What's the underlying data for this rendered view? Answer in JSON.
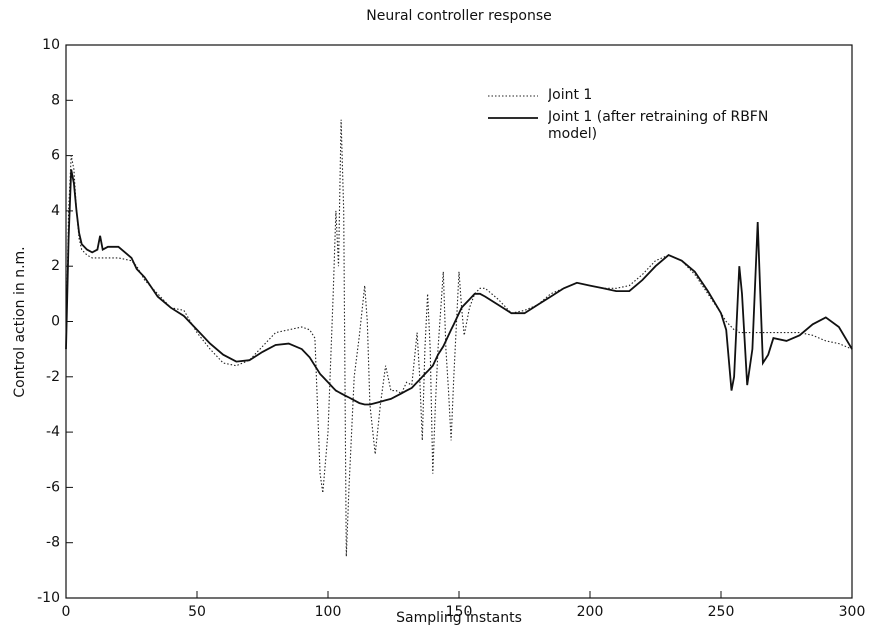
{
  "chart_data": {
    "type": "line",
    "title": "Neural controller response",
    "x_label": "Sampling instants",
    "y_label": "Control action in n.m.",
    "x": [
      0,
      1,
      2,
      3,
      4,
      5,
      6,
      8,
      10,
      12,
      13,
      14,
      16,
      18,
      20,
      25,
      27,
      30,
      35,
      40,
      45,
      50,
      55,
      60,
      65,
      70,
      75,
      80,
      85,
      90,
      93,
      95,
      97,
      98,
      100,
      102,
      103,
      104,
      105,
      106,
      107,
      108,
      110,
      112,
      114,
      115,
      116,
      118,
      120,
      122,
      124,
      126,
      128,
      130,
      132,
      134,
      135,
      136,
      137,
      138,
      139,
      140,
      141,
      142,
      144,
      145,
      146,
      147,
      148,
      150,
      151,
      152,
      154,
      156,
      158,
      160,
      165,
      170,
      175,
      180,
      185,
      190,
      195,
      200,
      205,
      210,
      215,
      220,
      225,
      230,
      235,
      240,
      245,
      250,
      252,
      254,
      255,
      256,
      257,
      258,
      260,
      262,
      264,
      265,
      266,
      268,
      270,
      275,
      280,
      285,
      290,
      295,
      300
    ],
    "series": [
      {
        "name": "Joint 1",
        "color": "#222",
        "dash": "dotted",
        "values": [
          -1,
          4,
          6,
          5.5,
          4,
          3,
          2.6,
          2.4,
          2.3,
          2.3,
          2.3,
          2.3,
          2.3,
          2.3,
          2.3,
          2.2,
          2.0,
          1.5,
          1.0,
          0.5,
          0.4,
          -0.4,
          -1.0,
          -1.5,
          -1.6,
          -1.4,
          -0.9,
          -0.4,
          -0.3,
          -0.2,
          -0.3,
          -0.6,
          -5.5,
          -6.2,
          -4,
          1,
          4,
          2,
          7.3,
          4,
          -8.5,
          -6,
          -2,
          -0.5,
          1.3,
          0,
          -3,
          -4.8,
          -3,
          -1.6,
          -2.5,
          -2.5,
          -2.6,
          -2.2,
          -2.3,
          -0.4,
          -2,
          -4.3,
          -1,
          1,
          -1,
          -5.5,
          -3,
          -1,
          1.8,
          -1,
          -2.5,
          -4.3,
          -2,
          1.8,
          0.5,
          -0.5,
          0.5,
          1.0,
          1.2,
          1.2,
          0.8,
          0.3,
          0.4,
          0.6,
          1.0,
          1.2,
          1.4,
          1.3,
          1.2,
          1.2,
          1.3,
          1.7,
          2.2,
          2.4,
          2.2,
          1.7,
          1.0,
          0.3,
          0,
          -0.2,
          -0.3,
          -0.3,
          -0.4,
          -0.4,
          -0.4,
          -0.4,
          -0.4,
          -0.4,
          -0.4,
          -0.4,
          -0.4,
          -0.4,
          -0.4,
          -0.5,
          -0.7,
          -0.8,
          -1.0
        ]
      },
      {
        "name": "Joint 1 (after retraining of RBFN model)",
        "color": "#111",
        "dash": "solid",
        "values": [
          -1,
          3,
          5.5,
          5,
          4,
          3.2,
          2.8,
          2.6,
          2.5,
          2.6,
          3.1,
          2.6,
          2.7,
          2.7,
          2.7,
          2.3,
          1.9,
          1.6,
          0.9,
          0.5,
          0.2,
          -0.3,
          -0.8,
          -1.2,
          -1.45,
          -1.4,
          -1.1,
          -0.85,
          -0.8,
          -1.0,
          -1.3,
          -1.6,
          -1.9,
          -2.0,
          -2.2,
          -2.4,
          -2.5,
          -2.55,
          -2.6,
          -2.65,
          -2.7,
          -2.75,
          -2.85,
          -2.95,
          -3.0,
          -3.0,
          -3.0,
          -2.95,
          -2.9,
          -2.85,
          -2.8,
          -2.7,
          -2.6,
          -2.5,
          -2.4,
          -2.2,
          -2.1,
          -2.0,
          -1.9,
          -1.8,
          -1.7,
          -1.6,
          -1.4,
          -1.2,
          -0.9,
          -0.7,
          -0.5,
          -0.3,
          -0.1,
          0.3,
          0.5,
          0.6,
          0.8,
          1.0,
          1.0,
          0.9,
          0.6,
          0.3,
          0.3,
          0.6,
          0.9,
          1.2,
          1.4,
          1.3,
          1.2,
          1.1,
          1.1,
          1.5,
          2.0,
          2.4,
          2.2,
          1.8,
          1.1,
          0.3,
          -0.3,
          -2.5,
          -2.0,
          0,
          2.0,
          1.0,
          -2.3,
          -1.0,
          3.6,
          1.0,
          -1.5,
          -1.2,
          -0.6,
          -0.7,
          -0.5,
          -0.1,
          0.15,
          -0.2,
          -1.0
        ]
      }
    ],
    "xlim": [
      0,
      300
    ],
    "xticks": [
      0,
      50,
      100,
      150,
      200,
      250,
      300
    ],
    "ylim": [
      -10,
      10
    ],
    "yticks": [
      -10,
      -8,
      -6,
      -4,
      -2,
      0,
      2,
      4,
      6,
      8,
      10
    ],
    "legend": "upper right"
  }
}
